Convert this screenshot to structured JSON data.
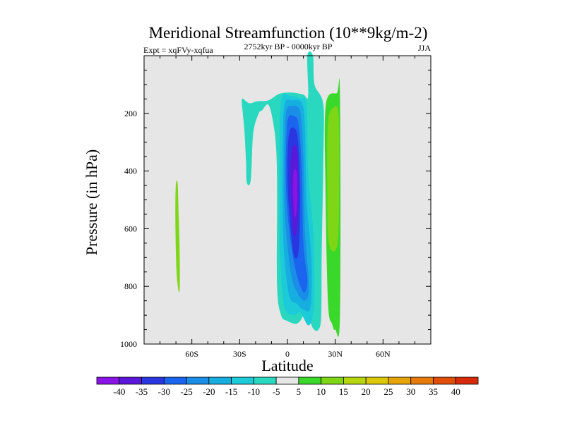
{
  "chart_data": {
    "type": "contour",
    "title": "Meridional Streamfunction (10**9kg/m-2)",
    "subtitle_left": "Expt = xqFVy-xqfua",
    "subtitle_center": "2752kyr BP - 0000kyr BP",
    "subtitle_right": "JJA",
    "xlabel": "Latitude",
    "ylabel": "Pressure (in hPa)",
    "xlim": [
      -90,
      90
    ],
    "ylim": [
      1000,
      0
    ],
    "x_ticks": [
      {
        "value": -60,
        "label": "60S"
      },
      {
        "value": -30,
        "label": "30S"
      },
      {
        "value": 0,
        "label": "0"
      },
      {
        "value": 30,
        "label": "30N"
      },
      {
        "value": 60,
        "label": "60N"
      }
    ],
    "y_ticks": [
      {
        "value": 200,
        "label": "200"
      },
      {
        "value": 400,
        "label": "400"
      },
      {
        "value": 600,
        "label": "600"
      },
      {
        "value": 800,
        "label": "800"
      },
      {
        "value": 1000,
        "label": "1000"
      }
    ],
    "colorbar": {
      "labels": [
        "-40",
        "-35",
        "-30",
        "-25",
        "-20",
        "-15",
        "-10",
        "-5",
        "5",
        "10",
        "15",
        "20",
        "25",
        "30",
        "35",
        "40"
      ],
      "colors": [
        "#8a14e6",
        "#5b18d8",
        "#2a36e0",
        "#1a64ee",
        "#1a8ee6",
        "#16aee0",
        "#1ccad8",
        "#2ad8c0",
        "#e6e6e6",
        "#3ad82a",
        "#7ed616",
        "#b6d60e",
        "#dcc80a",
        "#e6a40a",
        "#e67a0a",
        "#e04e0a",
        "#d62a0a"
      ]
    },
    "regions": [
      {
        "name": "antarctic-positive-strip",
        "level": 10,
        "color": "#7ed616",
        "points": [
          [
            -69,
            440
          ],
          [
            -68.3,
            550
          ],
          [
            -67.6,
            700
          ],
          [
            -67.8,
            820
          ],
          [
            -69.5,
            760
          ],
          [
            -70.3,
            600
          ],
          [
            -70.2,
            460
          ]
        ]
      },
      {
        "name": "southern-negative-cell",
        "level": -5,
        "color": "#2ad8c0",
        "points": [
          [
            -28.5,
            150
          ],
          [
            -24,
            165
          ],
          [
            -19,
            158
          ],
          [
            -12,
            155
          ],
          [
            -5,
            132
          ],
          [
            3,
            128
          ],
          [
            10,
            135
          ],
          [
            13,
            140
          ],
          [
            12.5,
            0
          ],
          [
            16,
            0
          ],
          [
            17,
            100
          ],
          [
            22.5,
            170
          ],
          [
            22.5,
            360
          ],
          [
            21.5,
            700
          ],
          [
            21.2,
            900
          ],
          [
            19.5,
            950
          ],
          [
            16,
            945
          ],
          [
            12,
            890
          ],
          [
            8,
            920
          ],
          [
            5,
            930
          ],
          [
            0,
            920
          ],
          [
            -4,
            900
          ],
          [
            -6.5,
            800
          ],
          [
            -6.5,
            500
          ],
          [
            -7,
            330
          ],
          [
            -9,
            230
          ],
          [
            -12,
            170
          ],
          [
            -16,
            190
          ],
          [
            -18,
            200
          ],
          [
            -21.5,
            270
          ],
          [
            -23,
            430
          ],
          [
            -25.5,
            440
          ],
          [
            -26,
            370
          ],
          [
            -27,
            260
          ],
          [
            -28,
            200
          ]
        ]
      },
      {
        "name": "southern-negative-cell",
        "level": -10,
        "color": "#1ccad8",
        "points": [
          [
            -4,
            160
          ],
          [
            2,
            140
          ],
          [
            8,
            148
          ],
          [
            12,
            170
          ],
          [
            13,
            400
          ],
          [
            16,
            600
          ],
          [
            17,
            800
          ],
          [
            16,
            900
          ],
          [
            13,
            935
          ],
          [
            8,
            890
          ],
          [
            4,
            900
          ],
          [
            -2,
            870
          ],
          [
            -4.5,
            700
          ],
          [
            -5,
            450
          ]
        ]
      },
      {
        "name": "southern-negative-cell",
        "level": -15,
        "color": "#16aee0",
        "points": [
          [
            -2,
            175
          ],
          [
            3,
            155
          ],
          [
            9,
            165
          ],
          [
            11,
            250
          ],
          [
            12,
            500
          ],
          [
            15,
            700
          ],
          [
            14.5,
            870
          ],
          [
            10,
            880
          ],
          [
            6,
            860
          ],
          [
            1,
            830
          ],
          [
            -2.5,
            650
          ],
          [
            -3,
            380
          ]
        ]
      },
      {
        "name": "southern-negative-cell",
        "level": -20,
        "color": "#1a8ee6",
        "points": [
          [
            -1,
            200
          ],
          [
            3,
            175
          ],
          [
            8,
            195
          ],
          [
            10,
            350
          ],
          [
            11,
            600
          ],
          [
            13.5,
            800
          ],
          [
            11,
            850
          ],
          [
            6,
            820
          ],
          [
            2,
            750
          ],
          [
            -1.5,
            560
          ],
          [
            -2,
            380
          ]
        ]
      },
      {
        "name": "southern-negative-cell",
        "level": -25,
        "color": "#1a64ee",
        "points": [
          [
            0,
            230
          ],
          [
            4,
            210
          ],
          [
            7,
            240
          ],
          [
            9,
            400
          ],
          [
            10,
            650
          ],
          [
            12.5,
            780
          ],
          [
            10,
            820
          ],
          [
            5,
            740
          ],
          [
            1,
            600
          ],
          [
            -1,
            430
          ]
        ]
      },
      {
        "name": "southern-negative-cell",
        "level": -30,
        "color": "#2a36e0",
        "points": [
          [
            1,
            270
          ],
          [
            5,
            255
          ],
          [
            7,
            320
          ],
          [
            8,
            500
          ],
          [
            7,
            680
          ],
          [
            4,
            690
          ],
          [
            1.5,
            570
          ],
          [
            0,
            420
          ]
        ]
      },
      {
        "name": "southern-negative-cell",
        "level": -35,
        "color": "#5b18d8",
        "points": [
          [
            3,
            320
          ],
          [
            6,
            325
          ],
          [
            7,
            450
          ],
          [
            6,
            600
          ],
          [
            4,
            620
          ],
          [
            2.5,
            520
          ],
          [
            2,
            400
          ]
        ]
      },
      {
        "name": "southern-negative-cell",
        "level": -40,
        "color": "#8a14e6",
        "points": [
          [
            4,
            400
          ],
          [
            6,
            410
          ],
          [
            6,
            520
          ],
          [
            4.5,
            560
          ],
          [
            3.5,
            470
          ]
        ]
      },
      {
        "name": "northern-positive-cell",
        "level": 5,
        "color": "#3ad82a",
        "points": [
          [
            24,
            175
          ],
          [
            31,
            130
          ],
          [
            33,
            140
          ],
          [
            33,
            900
          ],
          [
            30,
            950
          ],
          [
            28,
            930
          ],
          [
            25.5,
            860
          ],
          [
            24,
            500
          ]
        ]
      },
      {
        "name": "northern-positive-cell",
        "level": 10,
        "color": "#7ed616",
        "points": [
          [
            25.5,
            230
          ],
          [
            29,
            180
          ],
          [
            32,
            200
          ],
          [
            32.5,
            400
          ],
          [
            31.5,
            650
          ],
          [
            26,
            650
          ],
          [
            25,
            440
          ]
        ]
      }
    ]
  }
}
